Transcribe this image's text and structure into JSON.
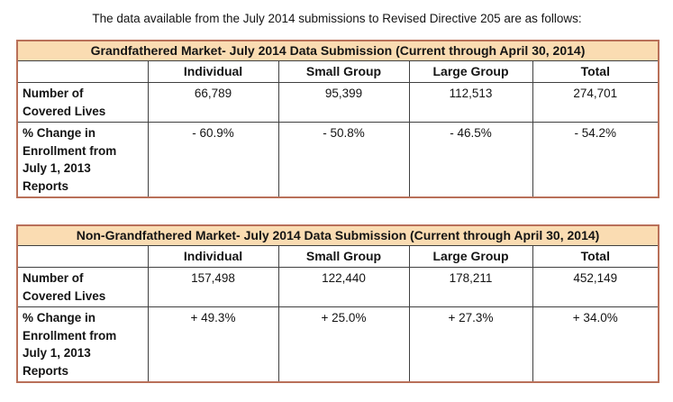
{
  "document": {
    "intro_text": "The data available from the July 2014 submissions to Revised Directive 205 are as follows:"
  },
  "colors": {
    "table_outer_border": "#b97059",
    "table_title_fill": "#fadcb2",
    "inner_grid_line": "#404040",
    "text": "#141414"
  },
  "tables": [
    {
      "name": "grandfathered-market-table",
      "title": "Grandfathered Market- July 2014 Data Submission (Current through April 30, 2014)",
      "columns": [
        "",
        "Individual",
        "Small Group",
        "Large Group",
        "Total"
      ],
      "rows": [
        {
          "label": "Number of Covered Lives",
          "label_lines": [
            "Number of",
            "Covered Lives"
          ],
          "values": [
            "66,789",
            "95,399",
            "112,513",
            "274,701"
          ]
        },
        {
          "label": "% Change in Enrollment from July 1, 2013 Reports",
          "label_lines": [
            "% Change in",
            "Enrollment from",
            "July 1, 2013",
            "Reports"
          ],
          "values": [
            "- 60.9%",
            "- 50.8%",
            "- 46.5%",
            "- 54.2%"
          ]
        }
      ]
    },
    {
      "name": "non-grandfathered-market-table",
      "title": "Non-Grandfathered Market- July 2014 Data Submission (Current through April 30, 2014)",
      "columns": [
        "",
        "Individual",
        "Small Group",
        "Large Group",
        "Total"
      ],
      "rows": [
        {
          "label": "Number of Covered Lives",
          "label_lines": [
            "Number of",
            "Covered Lives"
          ],
          "values": [
            "157,498",
            "122,440",
            "178,211",
            "452,149"
          ]
        },
        {
          "label": "% Change in Enrollment from July 1, 2013 Reports",
          "label_lines": [
            "% Change in",
            "Enrollment from",
            "July 1, 2013",
            "Reports"
          ],
          "values": [
            "+ 49.3%",
            "+ 25.0%",
            "+ 27.3%",
            "+ 34.0%"
          ]
        }
      ]
    }
  ]
}
